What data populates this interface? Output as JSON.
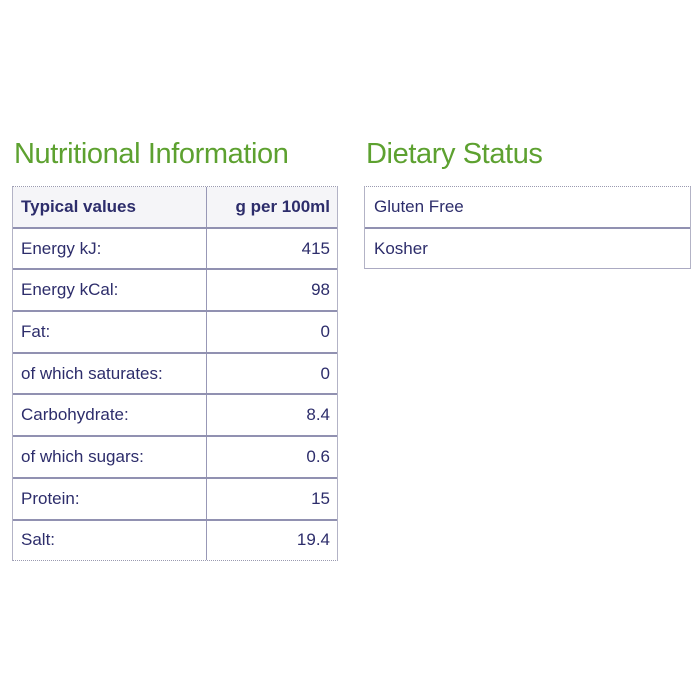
{
  "nutrition": {
    "heading": "Nutritional Information",
    "header": {
      "label": "Typical values",
      "value": "g per 100ml"
    },
    "rows": [
      {
        "label": "Energy kJ:",
        "value": "415"
      },
      {
        "label": "Energy kCal:",
        "value": "98"
      },
      {
        "label": "Fat:",
        "value": "0"
      },
      {
        "label": "of which saturates:",
        "value": "0"
      },
      {
        "label": "Carbohydrate:",
        "value": "8.4"
      },
      {
        "label": "of which sugars:",
        "value": "0.6"
      },
      {
        "label": "Protein:",
        "value": "15"
      },
      {
        "label": "Salt:",
        "value": "19.4"
      }
    ]
  },
  "dietary": {
    "heading": "Dietary Status",
    "items": [
      {
        "label": "Gluten Free"
      },
      {
        "label": "Kosher"
      }
    ]
  },
  "colors": {
    "heading_green": "#5da130",
    "text_navy": "#2d2d6b",
    "row_border": "#9191b1",
    "outer_border": "#b3b3c6",
    "header_row_bg": "#f5f5f8"
  }
}
